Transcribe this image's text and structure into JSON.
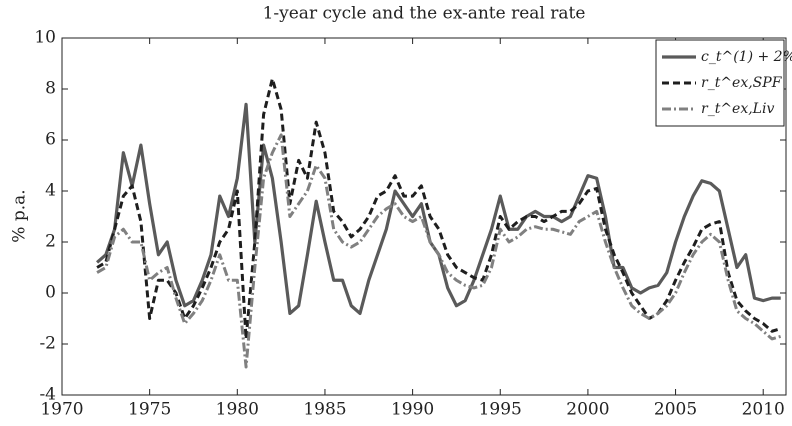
{
  "chart_data": {
    "type": "line",
    "title": "1-year cycle and the ex-ante real rate",
    "y_label": "% p.a.",
    "x": [
      1972.0,
      1972.5,
      1973.0,
      1973.5,
      1974.0,
      1974.5,
      1975.0,
      1975.5,
      1976.0,
      1976.5,
      1977.0,
      1977.5,
      1978.0,
      1978.5,
      1979.0,
      1979.5,
      1980.0,
      1980.5,
      1981.0,
      1981.5,
      1982.0,
      1982.5,
      1983.0,
      1983.5,
      1984.0,
      1984.5,
      1985.0,
      1985.5,
      1986.0,
      1986.5,
      1987.0,
      1987.5,
      1988.0,
      1988.5,
      1989.0,
      1989.5,
      1990.0,
      1990.5,
      1991.0,
      1991.5,
      1992.0,
      1992.5,
      1993.0,
      1993.5,
      1994.0,
      1994.5,
      1995.0,
      1995.5,
      1996.0,
      1996.5,
      1997.0,
      1997.5,
      1998.0,
      1998.5,
      1999.0,
      1999.5,
      2000.0,
      2000.5,
      2001.0,
      2001.5,
      2002.0,
      2002.5,
      2003.0,
      2003.5,
      2004.0,
      2004.5,
      2005.0,
      2005.5,
      2006.0,
      2006.5,
      2007.0,
      2007.5,
      2008.0,
      2008.5,
      2009.0,
      2009.5,
      2010.0,
      2010.5,
      2011.0
    ],
    "series": [
      {
        "name": "c_t^(1) + 2%",
        "color": "#5a5a5a",
        "dash": "none",
        "width": 3.2,
        "values": [
          1.2,
          1.5,
          2.5,
          5.5,
          4.2,
          5.8,
          3.5,
          1.5,
          2.0,
          0.5,
          -0.5,
          -0.3,
          0.5,
          1.5,
          3.8,
          3.0,
          4.5,
          7.4,
          2.0,
          5.8,
          4.5,
          2.0,
          -0.8,
          -0.5,
          1.5,
          3.6,
          2.0,
          0.5,
          0.5,
          -0.5,
          -0.8,
          0.5,
          1.5,
          2.5,
          4.0,
          3.5,
          3.0,
          3.5,
          2.0,
          1.5,
          0.2,
          -0.5,
          -0.3,
          0.5,
          1.5,
          2.5,
          3.8,
          2.5,
          2.5,
          3.0,
          3.2,
          3.0,
          3.0,
          2.8,
          3.0,
          3.8,
          4.6,
          4.5,
          3.0,
          1.0,
          1.0,
          0.2,
          0.0,
          0.2,
          0.3,
          0.8,
          2.0,
          3.0,
          3.8,
          4.4,
          4.3,
          4.0,
          2.5,
          1.0,
          1.5,
          -0.2,
          -0.3,
          -0.2,
          -0.2
        ]
      },
      {
        "name": "r_t^ex,SPF",
        "color": "#1e1e1e",
        "dash": "7 4",
        "width": 3,
        "values": [
          1.0,
          1.2,
          2.5,
          3.8,
          4.2,
          2.8,
          -1.0,
          0.5,
          0.5,
          0.0,
          -1.0,
          -0.5,
          0.2,
          1.0,
          2.0,
          2.5,
          4.0,
          -1.8,
          2.0,
          7.0,
          8.4,
          7.2,
          3.5,
          5.2,
          4.5,
          6.7,
          5.5,
          3.2,
          2.8,
          2.2,
          2.5,
          3.0,
          3.8,
          4.0,
          4.6,
          3.8,
          3.8,
          4.2,
          3.0,
          2.5,
          1.5,
          1.0,
          0.8,
          0.6,
          0.5,
          1.5,
          3.0,
          2.5,
          2.8,
          3.0,
          3.0,
          2.8,
          3.0,
          3.2,
          3.2,
          3.5,
          4.0,
          4.1,
          2.5,
          1.5,
          0.8,
          0.0,
          -0.5,
          -1.0,
          -0.8,
          -0.3,
          0.5,
          1.2,
          1.8,
          2.5,
          2.7,
          2.8,
          0.8,
          -0.3,
          -0.7,
          -1.0,
          -1.2,
          -1.5,
          -1.4
        ]
      },
      {
        "name": "r_t^ex,Liv",
        "color": "#808080",
        "dash": "9 3 2 3",
        "width": 3,
        "values": [
          0.8,
          1.0,
          2.2,
          2.5,
          2.0,
          2.0,
          0.5,
          0.8,
          1.0,
          -0.2,
          -1.2,
          -0.8,
          -0.3,
          0.5,
          1.5,
          0.5,
          0.5,
          -2.9,
          1.0,
          4.5,
          5.5,
          6.2,
          3.0,
          3.5,
          4.0,
          5.0,
          4.5,
          2.5,
          2.0,
          1.8,
          2.0,
          2.5,
          3.0,
          3.3,
          3.5,
          3.0,
          2.8,
          3.0,
          2.0,
          1.5,
          0.8,
          0.5,
          0.3,
          0.2,
          0.3,
          1.0,
          2.5,
          2.0,
          2.2,
          2.5,
          2.6,
          2.5,
          2.5,
          2.4,
          2.3,
          2.8,
          3.0,
          3.2,
          2.0,
          1.0,
          0.2,
          -0.5,
          -0.8,
          -1.0,
          -0.8,
          -0.5,
          0.0,
          0.8,
          1.5,
          2.0,
          2.3,
          2.0,
          0.5,
          -0.7,
          -1.0,
          -1.2,
          -1.5,
          -1.8,
          -1.7
        ]
      }
    ],
    "xlim": [
      1970,
      2011.3
    ],
    "ylim": [
      -4,
      10
    ],
    "xticks": [
      1970,
      1975,
      1980,
      1985,
      1990,
      1995,
      2000,
      2005,
      2010
    ],
    "yticks": [
      -4,
      -2,
      0,
      2,
      4,
      6,
      8,
      10
    ],
    "grid": false,
    "legend": "upper right"
  }
}
